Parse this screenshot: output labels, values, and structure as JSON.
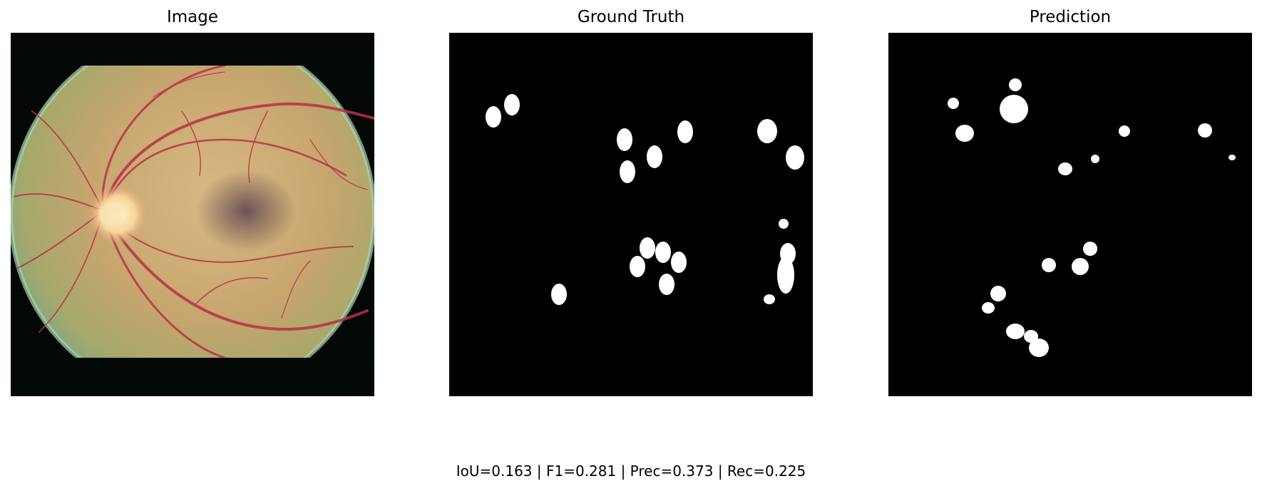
{
  "panels": {
    "image_title": "Image",
    "ground_truth_title": "Ground Truth",
    "prediction_title": "Prediction"
  },
  "metrics": "IoU=0.163 | F1=0.281 | Prec=0.373 | Rec=0.225",
  "colors": {
    "background": "#ffffff",
    "mask_bg": "#000000",
    "mask_fg": "#ffffff",
    "vessel": "#b8304a"
  }
}
